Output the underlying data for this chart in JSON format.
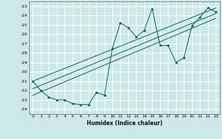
{
  "xlabel": "Humidex (Indice chaleur)",
  "bg_color": "#cce8e8",
  "grid_color": "#ffffff",
  "line_color": "#1a6b6b",
  "xlim": [
    -0.5,
    23.5
  ],
  "ylim": [
    -34.5,
    -22.5
  ],
  "xticks": [
    0,
    1,
    2,
    3,
    4,
    5,
    6,
    7,
    8,
    9,
    10,
    11,
    12,
    13,
    14,
    15,
    16,
    17,
    18,
    19,
    20,
    21,
    22,
    23
  ],
  "yticks": [
    -23,
    -24,
    -25,
    -26,
    -27,
    -28,
    -29,
    -30,
    -31,
    -32,
    -33,
    -34
  ],
  "scatter_x": [
    0,
    1,
    2,
    3,
    4,
    5,
    6,
    7,
    8,
    9,
    10,
    11,
    12,
    13,
    14,
    15,
    16,
    17,
    18,
    19,
    20,
    21,
    22,
    23
  ],
  "scatter_y": [
    -31.0,
    -32.0,
    -32.7,
    -33.0,
    -33.0,
    -33.4,
    -33.5,
    -33.5,
    -32.2,
    -32.5,
    -27.5,
    -24.8,
    -25.3,
    -26.3,
    -25.6,
    -23.3,
    -27.2,
    -27.2,
    -29.0,
    -28.5,
    -25.1,
    -24.2,
    -23.2,
    -23.6
  ],
  "regression_lines": [
    {
      "x0": 0,
      "y0": -31.0,
      "x1": 23,
      "y1": -23.2
    },
    {
      "x0": 0,
      "y0": -31.8,
      "x1": 23,
      "y1": -23.8
    },
    {
      "x0": 0,
      "y0": -32.5,
      "x1": 23,
      "y1": -24.3
    }
  ]
}
